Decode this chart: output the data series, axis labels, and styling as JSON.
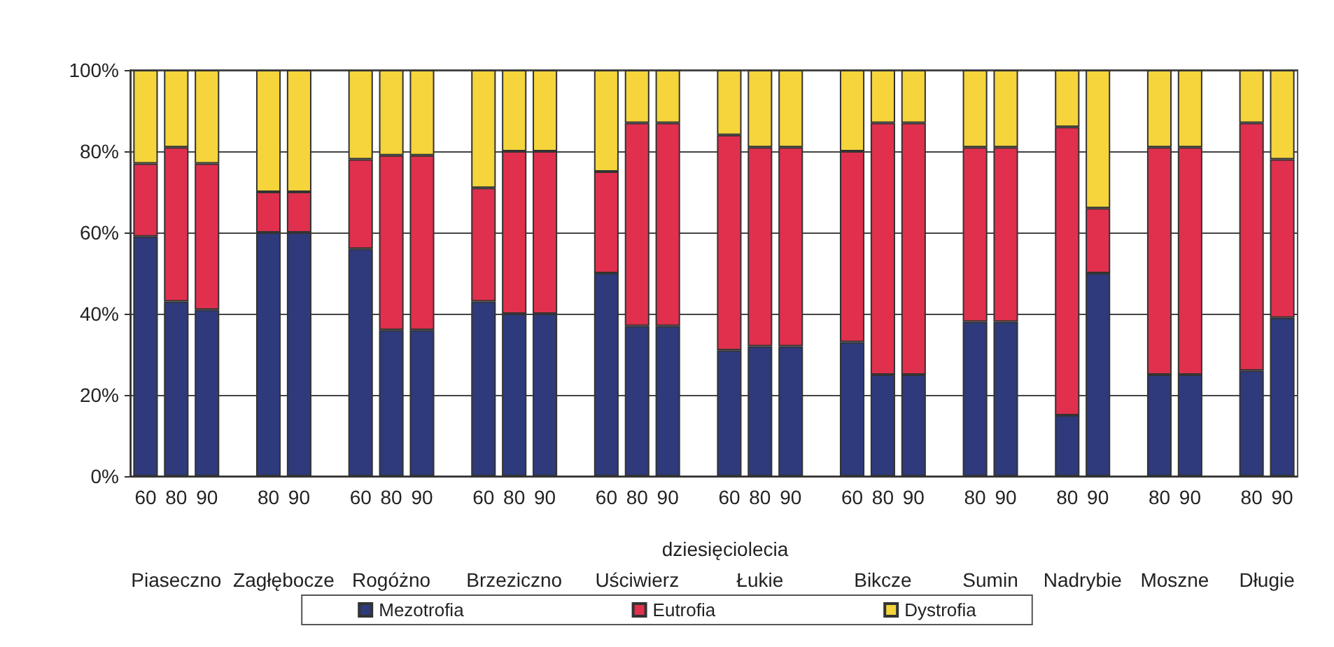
{
  "chart_data": {
    "type": "bar",
    "stacked": true,
    "xlabel": "dziesięciolecia",
    "categories": [
      "60",
      "80",
      "90",
      null,
      "80",
      "90",
      null,
      "60",
      "80",
      "90",
      null,
      "60",
      "80",
      "90",
      null,
      "60",
      "80",
      "90",
      null,
      "60",
      "80",
      "90",
      null,
      "60",
      "80",
      "90",
      null,
      "80",
      "90",
      null,
      "80",
      "90",
      null,
      "80",
      "90",
      null,
      "80",
      "90"
    ],
    "series": [
      {
        "name": "Mezotrofia",
        "color": "#2e3a7c",
        "values": [
          59,
          43,
          41,
          null,
          60,
          60,
          null,
          56,
          36,
          36,
          null,
          43,
          40,
          40,
          null,
          50,
          37,
          37,
          null,
          31,
          32,
          32,
          null,
          33,
          25,
          25,
          null,
          38,
          38,
          null,
          15,
          50,
          null,
          25,
          25,
          null,
          26,
          39
        ]
      },
      {
        "name": "Eutrofia",
        "color": "#e0304e",
        "values": [
          18,
          38,
          36,
          null,
          10,
          10,
          null,
          22,
          43,
          43,
          null,
          28,
          40,
          40,
          null,
          25,
          50,
          50,
          null,
          53,
          49,
          49,
          null,
          47,
          62,
          62,
          null,
          43,
          43,
          null,
          71,
          16,
          null,
          56,
          56,
          null,
          61,
          39
        ]
      },
      {
        "name": "Dystrofia",
        "color": "#f5d43c",
        "values": [
          23,
          19,
          23,
          null,
          30,
          30,
          null,
          22,
          21,
          21,
          null,
          29,
          20,
          20,
          null,
          25,
          13,
          13,
          null,
          16,
          19,
          19,
          null,
          20,
          13,
          13,
          null,
          19,
          19,
          null,
          14,
          34,
          null,
          19,
          19,
          null,
          13,
          22
        ]
      }
    ],
    "annotations": [
      "Piaseczno",
      "Zagłębocze",
      "Rogóżno",
      "Brzeziczno",
      "Uściwierz",
      "Łukie",
      "Bikcze",
      "Sumin",
      "Nadrybie",
      "Moszne",
      "Długie"
    ],
    "ylim": [
      0,
      100
    ],
    "yticks": [
      {
        "value": 0,
        "label": "0%"
      },
      {
        "value": 20,
        "label": "20%"
      },
      {
        "value": 40,
        "label": "40%"
      },
      {
        "value": 60,
        "label": "60%"
      },
      {
        "value": 80,
        "label": "80%"
      },
      {
        "value": 100,
        "label": "100%"
      }
    ],
    "grid": "y",
    "legend": "bottom"
  }
}
